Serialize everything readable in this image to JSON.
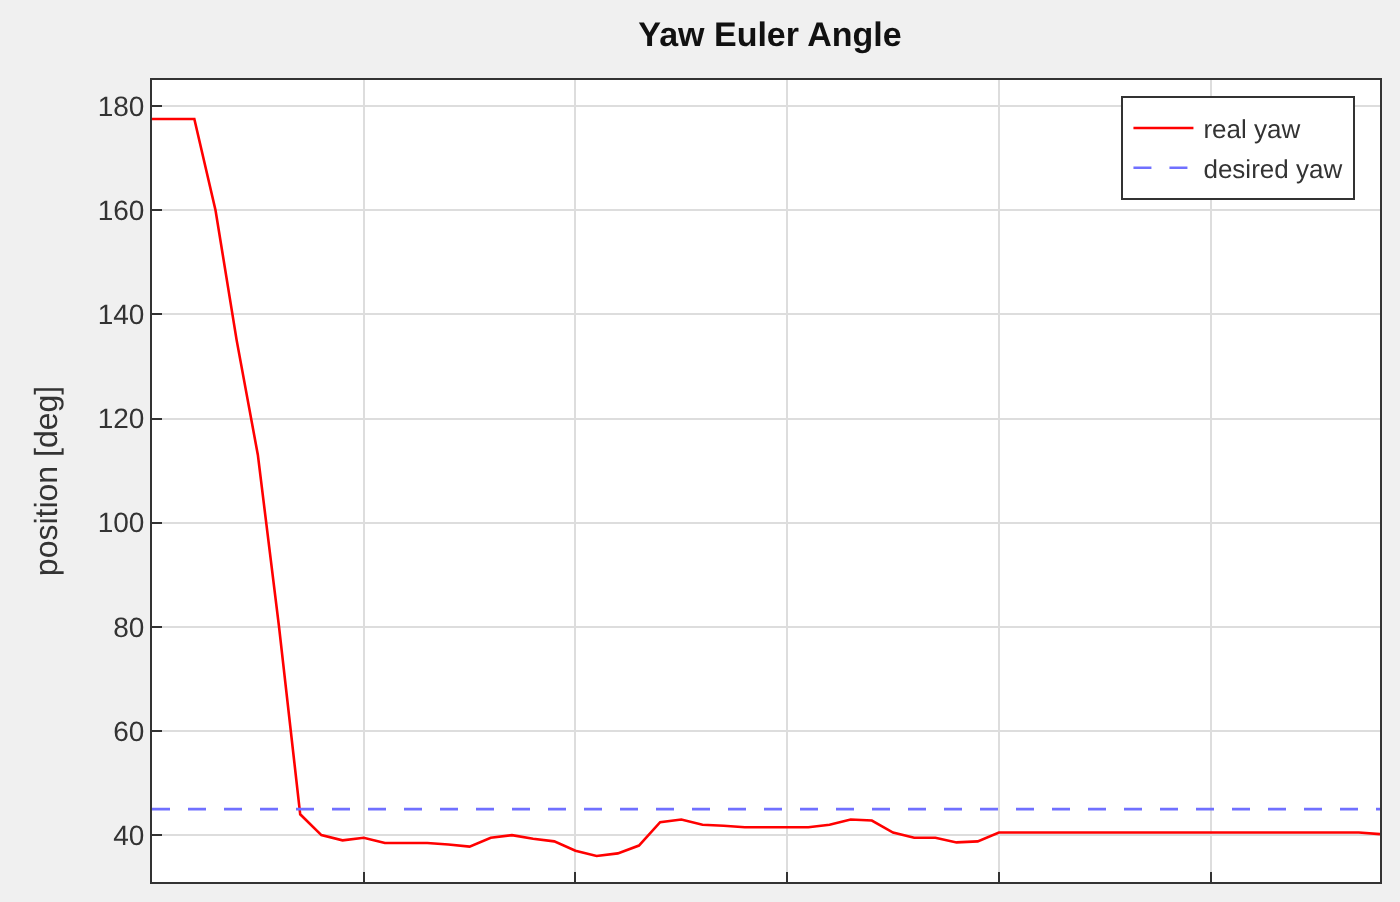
{
  "chart_data": {
    "type": "line",
    "title": "Yaw Euler Angle",
    "ylabel": "position [deg]",
    "categories": [
      null,
      null,
      null,
      null,
      null,
      null,
      null,
      null,
      null,
      null,
      null,
      null,
      null,
      null,
      null,
      null,
      null,
      null,
      null,
      null,
      null,
      null,
      null,
      null,
      null,
      null,
      null,
      null,
      null,
      null,
      null,
      null,
      null,
      null,
      null,
      null,
      null,
      null,
      null,
      null,
      null,
      null,
      null,
      null,
      null,
      null,
      null,
      null,
      null,
      null,
      null,
      null,
      null,
      null,
      null,
      null,
      null,
      null,
      null
    ],
    "ylim": [
      31,
      185
    ],
    "yticks": [
      40,
      60,
      80,
      100,
      120,
      140,
      160,
      180
    ],
    "tick_labels": "y",
    "grid": true,
    "legend": "top right",
    "series": [
      {
        "name": "real yaw",
        "color": "#ff0000",
        "line_style": "solid",
        "values": [
          177.5,
          177.5,
          177.5,
          160,
          135,
          113,
          80,
          44,
          40,
          39,
          39.5,
          38.5,
          38.5,
          38.5,
          38.2,
          37.8,
          39.5,
          40,
          39.3,
          38.8,
          37,
          36,
          36.5,
          38,
          42.5,
          43,
          42,
          41.8,
          41.5,
          41.5,
          41.5,
          41.5,
          42,
          43,
          42.8,
          40.5,
          39.5,
          39.5,
          38.6,
          38.8,
          40.5,
          40.5,
          40.5,
          40.5,
          40.5,
          40.5,
          40.5,
          40.5,
          40.5,
          40.5,
          40.5,
          40.5,
          40.5,
          40.5,
          40.5,
          40.5,
          40.5,
          40.5,
          40.2
        ]
      },
      {
        "name": "desired yaw",
        "color": "#7070ff",
        "line_style": "dashed",
        "values": [
          45,
          45,
          45,
          45,
          45,
          45,
          45,
          45,
          45,
          45,
          45,
          45,
          45,
          45,
          45,
          45,
          45,
          45,
          45,
          45,
          45,
          45,
          45,
          45,
          45,
          45,
          45,
          45,
          45,
          45,
          45,
          45,
          45,
          45,
          45,
          45,
          45,
          45,
          45,
          45,
          45,
          45,
          45,
          45,
          45,
          45,
          45,
          45,
          45,
          45,
          45,
          45,
          45,
          45,
          45,
          45,
          45,
          45,
          45
        ]
      }
    ]
  }
}
